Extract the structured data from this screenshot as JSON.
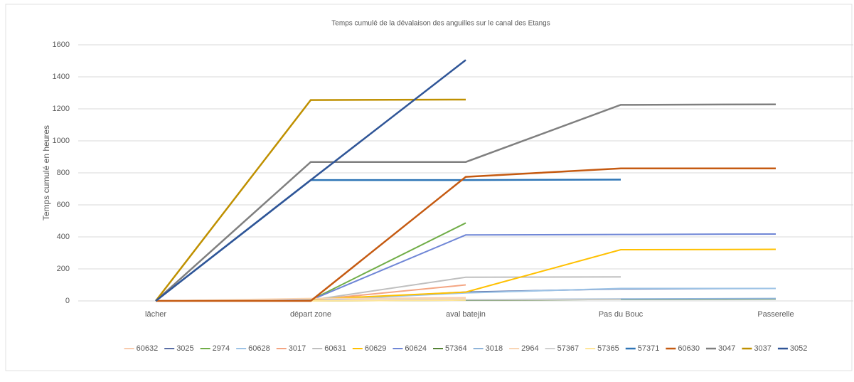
{
  "chart_data": {
    "type": "line",
    "title": "Temps cumulé de la dévalaison des anguilles sur le canal des Etangs",
    "y_label": "Temps cumulé en heures",
    "categories": [
      "lâcher",
      "départ zone",
      "aval batejin",
      "Pas du Bouc",
      "Passerelle"
    ],
    "ylim": [
      0,
      1600
    ],
    "yticks": [
      0,
      200,
      400,
      600,
      800,
      1000,
      1200,
      1400,
      1600
    ],
    "grid": true,
    "legend": "bottom",
    "series": [
      {
        "name": "60632",
        "color": "#f8cbad",
        "values": [
          0,
          12,
          20,
          null,
          null
        ]
      },
      {
        "name": "3025",
        "color": "#5b6fa6",
        "values": [
          0,
          5,
          55,
          75,
          78
        ]
      },
      {
        "name": "2974",
        "color": "#70ad47",
        "values": [
          0,
          5,
          487,
          null,
          null
        ]
      },
      {
        "name": "60628",
        "color": "#9dc3e6",
        "values": [
          0,
          3,
          50,
          78,
          78
        ]
      },
      {
        "name": "3017",
        "color": "#f4a582",
        "values": [
          0,
          5,
          100,
          null,
          null
        ]
      },
      {
        "name": "60631",
        "color": "#bfbfbf",
        "values": [
          0,
          5,
          148,
          150,
          null
        ]
      },
      {
        "name": "60629",
        "color": "#ffc000",
        "values": [
          0,
          10,
          55,
          320,
          322
        ]
      },
      {
        "name": "60624",
        "color": "#6f86d6",
        "values": [
          0,
          5,
          412,
          415,
          418
        ]
      },
      {
        "name": "57364",
        "color": "#548235",
        "values": [
          0,
          0,
          5,
          10,
          12
        ]
      },
      {
        "name": "3018",
        "color": "#8fb4d9",
        "values": [
          0,
          2,
          8,
          12,
          15
        ]
      },
      {
        "name": "2964",
        "color": "#f9d5b4",
        "values": [
          0,
          15,
          15,
          null,
          null
        ]
      },
      {
        "name": "57367",
        "color": "#d0d0d0",
        "values": [
          0,
          2,
          8,
          10,
          null
        ]
      },
      {
        "name": "57365",
        "color": "#ffe699",
        "values": [
          0,
          0,
          5,
          null,
          null
        ]
      },
      {
        "name": "57371",
        "color": "#2e75b6",
        "values": [
          0,
          755,
          755,
          758,
          null
        ]
      },
      {
        "name": "60630",
        "color": "#c55a11",
        "values": [
          0,
          0,
          775,
          828,
          828
        ]
      },
      {
        "name": "3047",
        "color": "#7f7f7f",
        "values": [
          0,
          868,
          868,
          1225,
          1228
        ]
      },
      {
        "name": "3037",
        "color": "#bf9000",
        "values": [
          0,
          1255,
          1258,
          null,
          null
        ]
      },
      {
        "name": "3052",
        "color": "#2f5597",
        "values": [
          0,
          755,
          1505,
          null,
          null
        ]
      }
    ]
  }
}
